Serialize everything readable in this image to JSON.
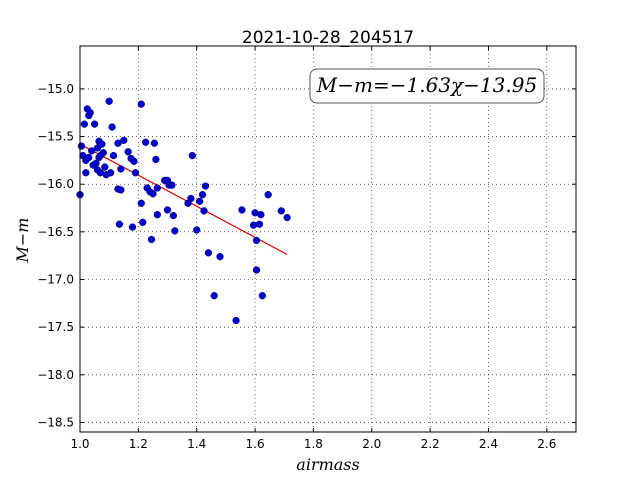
{
  "chart_data": {
    "type": "scatter",
    "title": "2021-10-28_204517",
    "xlabel": "airmass",
    "ylabel": "M−m",
    "xlim": [
      1.0,
      2.7
    ],
    "ylim": [
      -18.6,
      -14.55
    ],
    "y_inverted": true,
    "grid": true,
    "xticks": [
      "1.0",
      "1.2",
      "1.4",
      "1.6",
      "1.8",
      "2.0",
      "2.2",
      "2.4",
      "2.6"
    ],
    "xtick_values": [
      1.0,
      1.2,
      1.4,
      1.6,
      1.8,
      2.0,
      2.2,
      2.4,
      2.6
    ],
    "yticks": [
      "−15.0",
      "−15.5",
      "−16.0",
      "−16.5",
      "−17.0",
      "−17.5",
      "−18.0",
      "−18.5"
    ],
    "ytick_values": [
      -15.0,
      -15.5,
      -16.0,
      -16.5,
      -17.0,
      -17.5,
      -18.0,
      -18.5
    ],
    "annotation": "M−m=−1.63χ−13.95",
    "fit": {
      "slope": -1.63,
      "intercept": -13.95,
      "x": [
        1.0,
        1.71
      ],
      "color": "#dd0000"
    },
    "marker_color": "#0000cc",
    "points": [
      [
        1.0,
        -16.11
      ],
      [
        1.005,
        -15.6
      ],
      [
        1.01,
        -15.7
      ],
      [
        1.015,
        -15.37
      ],
      [
        1.02,
        -15.75
      ],
      [
        1.02,
        -15.88
      ],
      [
        1.025,
        -15.21
      ],
      [
        1.03,
        -15.28
      ],
      [
        1.03,
        -15.72
      ],
      [
        1.035,
        -15.25
      ],
      [
        1.04,
        -15.65
      ],
      [
        1.045,
        -15.8
      ],
      [
        1.05,
        -15.37
      ],
      [
        1.055,
        -15.78
      ],
      [
        1.06,
        -15.62
      ],
      [
        1.06,
        -15.85
      ],
      [
        1.065,
        -15.72
      ],
      [
        1.065,
        -15.55
      ],
      [
        1.07,
        -15.7
      ],
      [
        1.07,
        -15.88
      ],
      [
        1.075,
        -15.58
      ],
      [
        1.08,
        -15.67
      ],
      [
        1.085,
        -15.82
      ],
      [
        1.09,
        -15.9
      ],
      [
        1.1,
        -15.13
      ],
      [
        1.105,
        -15.88
      ],
      [
        1.11,
        -15.4
      ],
      [
        1.115,
        -15.7
      ],
      [
        1.13,
        -15.57
      ],
      [
        1.13,
        -16.05
      ],
      [
        1.135,
        -16.42
      ],
      [
        1.14,
        -16.06
      ],
      [
        1.14,
        -15.84
      ],
      [
        1.15,
        -15.54
      ],
      [
        1.165,
        -15.66
      ],
      [
        1.175,
        -15.73
      ],
      [
        1.18,
        -16.45
      ],
      [
        1.185,
        -15.76
      ],
      [
        1.19,
        -15.88
      ],
      [
        1.21,
        -15.16
      ],
      [
        1.21,
        -16.2
      ],
      [
        1.215,
        -16.4
      ],
      [
        1.225,
        -15.56
      ],
      [
        1.23,
        -16.04
      ],
      [
        1.24,
        -16.08
      ],
      [
        1.245,
        -16.58
      ],
      [
        1.25,
        -16.1
      ],
      [
        1.255,
        -15.57
      ],
      [
        1.26,
        -15.74
      ],
      [
        1.265,
        -16.04
      ],
      [
        1.265,
        -16.32
      ],
      [
        1.29,
        -15.96
      ],
      [
        1.3,
        -16.27
      ],
      [
        1.3,
        -15.96
      ],
      [
        1.305,
        -16.01
      ],
      [
        1.315,
        -16.01
      ],
      [
        1.32,
        -16.33
      ],
      [
        1.325,
        -16.49
      ],
      [
        1.37,
        -16.2
      ],
      [
        1.38,
        -16.15
      ],
      [
        1.385,
        -15.7
      ],
      [
        1.4,
        -16.48
      ],
      [
        1.41,
        -16.18
      ],
      [
        1.42,
        -16.11
      ],
      [
        1.425,
        -16.28
      ],
      [
        1.43,
        -16.02
      ],
      [
        1.44,
        -16.72
      ],
      [
        1.46,
        -17.17
      ],
      [
        1.48,
        -16.76
      ],
      [
        1.535,
        -17.43
      ],
      [
        1.555,
        -16.27
      ],
      [
        1.595,
        -16.43
      ],
      [
        1.6,
        -16.3
      ],
      [
        1.605,
        -16.59
      ],
      [
        1.605,
        -16.9
      ],
      [
        1.615,
        -16.42
      ],
      [
        1.62,
        -16.32
      ],
      [
        1.625,
        -17.17
      ],
      [
        1.645,
        -16.11
      ],
      [
        1.69,
        -16.28
      ],
      [
        1.71,
        -16.35
      ]
    ]
  }
}
